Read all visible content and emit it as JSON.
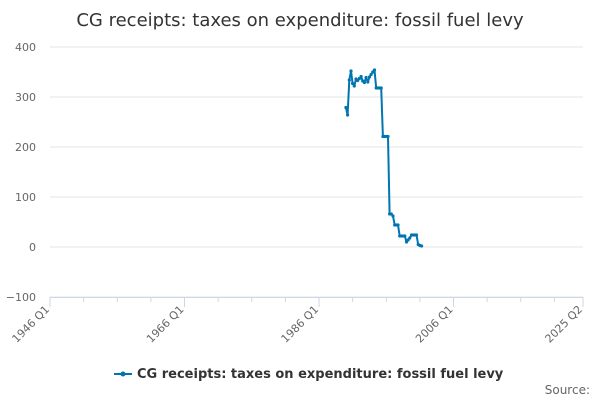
{
  "chart_data": {
    "type": "line",
    "title": "CG receipts: taxes on expenditure: fossil fuel levy",
    "xlabel": "",
    "ylabel": "",
    "ylim": [
      -100,
      400
    ],
    "y_ticks": [
      -100,
      0,
      100,
      200,
      300,
      400
    ],
    "y_tick_labels": [
      "−100",
      "0",
      "100",
      "200",
      "300",
      "400"
    ],
    "x_ticks": [
      "1946 Q1",
      "1966 Q1",
      "1986 Q1",
      "2006 Q1",
      "2025 Q2"
    ],
    "x_range": [
      "1946 Q1",
      "2025 Q2"
    ],
    "grid": "horizontal",
    "legend_position": "bottom",
    "color": "#0075b2",
    "series": [
      {
        "name": "CG receipts: taxes on expenditure: fossil fuel levy",
        "x": [
          "1990 Q1",
          "1990 Q2",
          "1990 Q3",
          "1990 Q4",
          "1991 Q1",
          "1991 Q2",
          "1991 Q3",
          "1991 Q4",
          "1992 Q1",
          "1992 Q2",
          "1992 Q3",
          "1992 Q4",
          "1993 Q1",
          "1993 Q2",
          "1993 Q3",
          "1993 Q4",
          "1994 Q1",
          "1994 Q2",
          "1994 Q3",
          "1994 Q4",
          "1995 Q1",
          "1995 Q2",
          "1995 Q3",
          "1995 Q4",
          "1996 Q1",
          "1996 Q2",
          "1996 Q3",
          "1996 Q4",
          "1997 Q1",
          "1997 Q2",
          "1997 Q3",
          "1997 Q4",
          "1998 Q1",
          "1998 Q2",
          "1998 Q3",
          "1998 Q4",
          "1999 Q1",
          "1999 Q2",
          "1999 Q3",
          "1999 Q4",
          "2000 Q1",
          "2000 Q2",
          "2000 Q3",
          "2000 Q4",
          "2001 Q1",
          "2001 Q2",
          "2001 Q3",
          "2001 Q4",
          "2002 Q1",
          "2002 Q2"
        ],
        "values": [
          279,
          264,
          334,
          352,
          327,
          322,
          336,
          333,
          337,
          341,
          332,
          329,
          339,
          330,
          340,
          345,
          350,
          354,
          318,
          318,
          318,
          318,
          221,
          221,
          221,
          221,
          66,
          66,
          62,
          44,
          44,
          44,
          22,
          22,
          22,
          22,
          10,
          14,
          18,
          24,
          24,
          24,
          24,
          5,
          3,
          2,
          null,
          null,
          null,
          null
        ]
      }
    ]
  },
  "legend": {
    "label": "CG receipts: taxes on expenditure: fossil fuel levy"
  },
  "source": {
    "label": "Source:"
  }
}
